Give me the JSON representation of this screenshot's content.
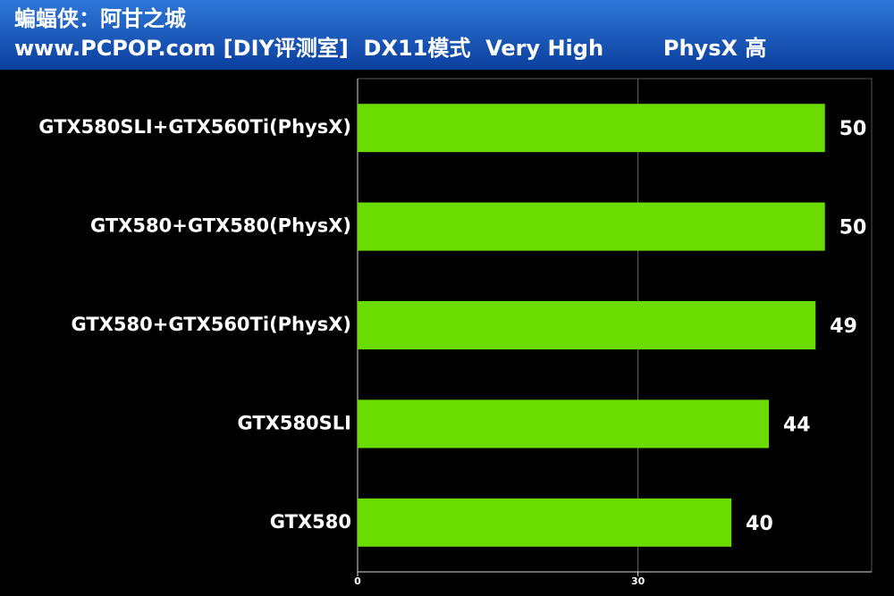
{
  "chart_data": {
    "type": "bar",
    "orientation": "horizontal",
    "title": "蝙蝠侠：阿甘之城",
    "subtitle": "www.PCPOP.com [DIY评测室]  DX11模式  Very High        PhysX 高",
    "categories": [
      "GTX580SLI+GTX560Ti(PhysX)",
      "GTX580+GTX580(PhysX)",
      "GTX580+GTX560Ti(PhysX)",
      "GTX580SLI",
      "GTX580"
    ],
    "values": [
      50,
      50,
      49,
      44,
      40
    ],
    "color": "#6bdc00",
    "xlim": [
      0,
      55
    ],
    "xticks": [
      0,
      30
    ],
    "grid": true
  }
}
